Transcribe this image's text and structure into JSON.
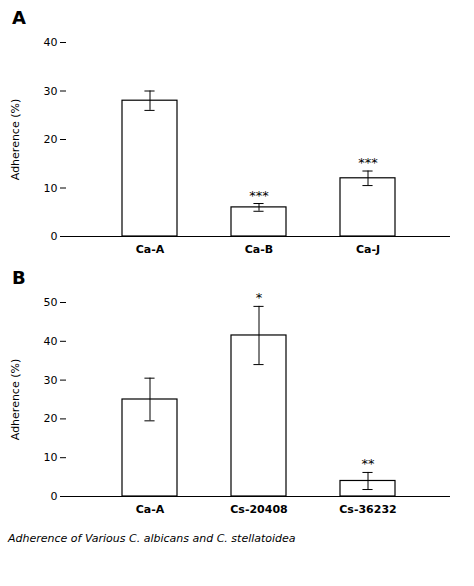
{
  "chart_data": [
    {
      "type": "bar",
      "title": "A",
      "categories": [
        "Ca-A",
        "Ca-B",
        "Ca-J"
      ],
      "values": [
        28.0,
        6.0,
        12.0
      ],
      "errors": [
        2.0,
        0.8,
        1.5
      ],
      "annotations": [
        {
          "category": "Ca-B",
          "text": "***"
        },
        {
          "category": "Ca-J",
          "text": "***"
        }
      ],
      "y_label": "Adherence (%)",
      "ylim": [
        0,
        40
      ],
      "yticks": [
        0,
        10,
        20,
        30,
        40
      ],
      "color": "#ffffff",
      "grid": false
    },
    {
      "type": "bar",
      "title": "B",
      "categories": [
        "Ca-A",
        "Cs-20408",
        "Cs-36232"
      ],
      "values": [
        25.0,
        41.5,
        4.0
      ],
      "errors": [
        5.5,
        7.5,
        2.2
      ],
      "annotations": [
        {
          "category": "Cs-20408",
          "text": "*"
        },
        {
          "category": "Cs-36232",
          "text": "**"
        }
      ],
      "y_label": "Adherence (%)",
      "ylim": [
        0,
        50
      ],
      "yticks": [
        0,
        10,
        20,
        30,
        40,
        50
      ],
      "color": "#ffffff",
      "grid": false
    }
  ],
  "caption": "Adherence of Various C. albicans and C. stellatoidea"
}
